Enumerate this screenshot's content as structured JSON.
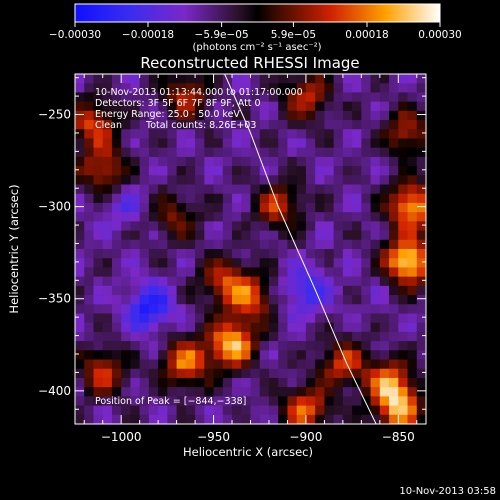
{
  "chart_data": {
    "type": "heatmap",
    "title": "Reconstructed RHESSI Image",
    "xlabel": "Heliocentric X (arcsec)",
    "ylabel": "Heliocentric Y (arcsec)",
    "xlim": [
      -1025,
      -835
    ],
    "ylim": [
      -418,
      -228
    ],
    "x_ticks": [
      -1000,
      -950,
      -900,
      -850
    ],
    "y_ticks": [
      -250,
      -300,
      -350,
      -400
    ],
    "x_tick_labels": [
      "−1000",
      "−950",
      "−900",
      "−850"
    ],
    "y_tick_labels": [
      "−250",
      "−300",
      "−350",
      "−400"
    ],
    "colorbar": {
      "ticks": [
        -0.0003,
        -0.00018,
        -5.9e-05,
        5.9e-05,
        0.00018,
        0.0003
      ],
      "tick_labels": [
        "−0.00030",
        "−0.00018",
        "−5.9e−05",
        "5.9e−05",
        "0.00018",
        "0.00030"
      ],
      "units_label": "(photons cm⁻² s⁻¹ asec⁻²)"
    },
    "annotations": {
      "time_range": "10-Nov-2013 01:13:44.000 to 01:17:00.000",
      "detectors": "Detectors: 3F 5F 6F 7F 8F 9F, Att 0",
      "energy_range": "Energy Range: 25.0 - 50.0 keV",
      "clean": "Clean",
      "total_counts": "Total counts: 8.26E+03",
      "peak": "Position of Peak = [−844,−338]"
    },
    "limb_curve": [
      [
        -944,
        -228
      ],
      [
        -930,
        -260
      ],
      [
        -915,
        -300
      ],
      [
        -895,
        -345
      ],
      [
        -878,
        -385
      ],
      [
        -862,
        -418
      ]
    ],
    "intensity_sources": [
      {
        "x": -985,
        "y": -355,
        "v": -0.00026
      },
      {
        "x": -900,
        "y": -345,
        "v": -0.00022
      },
      {
        "x": -1000,
        "y": -300,
        "v": -0.00015
      },
      {
        "x": -860,
        "y": -340,
        "v": -0.0001
      },
      {
        "x": -845,
        "y": -330,
        "v": 0.00028
      },
      {
        "x": -843,
        "y": -300,
        "v": 0.00022
      },
      {
        "x": -940,
        "y": -375,
        "v": 0.00024
      },
      {
        "x": -965,
        "y": -385,
        "v": 0.00017
      },
      {
        "x": -930,
        "y": -350,
        "v": 0.00014
      },
      {
        "x": -1015,
        "y": -255,
        "v": 0.00014
      },
      {
        "x": -1010,
        "y": -280,
        "v": 0.00012
      },
      {
        "x": -850,
        "y": -410,
        "v": 0.0002
      },
      {
        "x": -900,
        "y": -410,
        "v": 0.00016
      },
      {
        "x": -880,
        "y": -385,
        "v": 0.00012
      },
      {
        "x": -855,
        "y": -395,
        "v": 0.00016
      },
      {
        "x": -965,
        "y": -240,
        "v": 0.0001
      },
      {
        "x": -900,
        "y": -240,
        "v": 0.00011
      },
      {
        "x": -915,
        "y": -300,
        "v": 0.00011
      },
      {
        "x": -945,
        "y": -340,
        "v": 0.00011
      },
      {
        "x": -1010,
        "y": -390,
        "v": 0.00012
      },
      {
        "x": -845,
        "y": -260,
        "v": 0.0001
      },
      {
        "x": -970,
        "y": -305,
        "v": 6e-05
      },
      {
        "x": -905,
        "y": -280,
        "v": -7e-05
      },
      {
        "x": -990,
        "y": -400,
        "v": -8e-05
      }
    ]
  },
  "footer": {
    "timestamp": "10-Nov-2013 03:58"
  }
}
